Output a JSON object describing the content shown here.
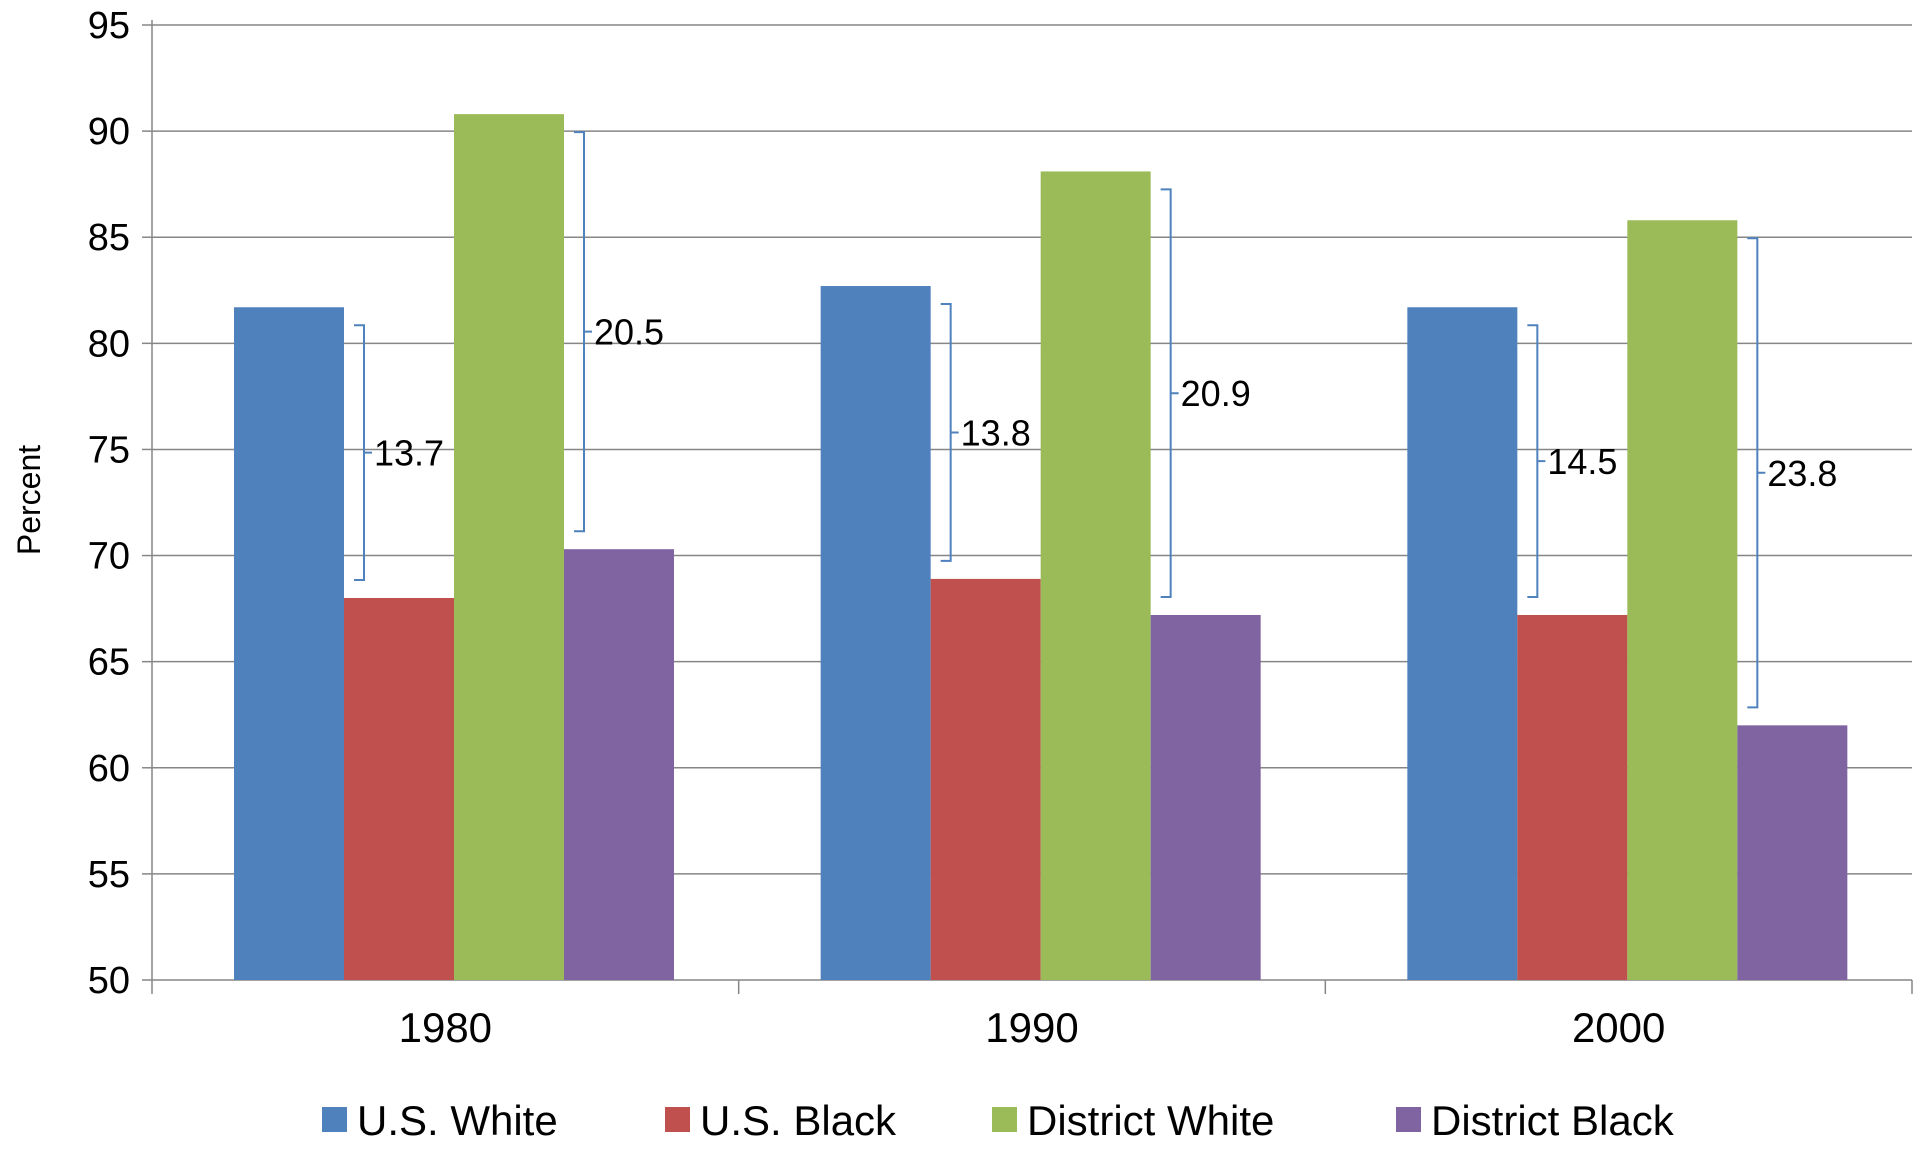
{
  "chart_data": {
    "type": "bar",
    "title": "",
    "xlabel": "",
    "ylabel": "Percent",
    "ylim": [
      50,
      95
    ],
    "yticks": [
      50,
      55,
      60,
      65,
      70,
      75,
      80,
      85,
      90,
      95
    ],
    "grid": true,
    "legend_position": "bottom",
    "categories": [
      "1980",
      "1990",
      "2000"
    ],
    "series": [
      {
        "name": "U.S. White",
        "color": "#4F81BD",
        "values": [
          81.7,
          82.7,
          81.7
        ]
      },
      {
        "name": "U.S. Black",
        "color": "#C0504D",
        "values": [
          68.0,
          68.9,
          67.2
        ]
      },
      {
        "name": "District White",
        "color": "#9BBB59",
        "values": [
          90.8,
          88.1,
          85.8
        ]
      },
      {
        "name": "District Black",
        "color": "#8064A2",
        "values": [
          70.3,
          67.2,
          62.0
        ]
      }
    ],
    "annotations": [
      {
        "category": "1980",
        "between": [
          "U.S. White",
          "U.S. Black"
        ],
        "label": "13.7"
      },
      {
        "category": "1980",
        "between": [
          "District White",
          "District Black"
        ],
        "label": "20.5"
      },
      {
        "category": "1990",
        "between": [
          "U.S. White",
          "U.S. Black"
        ],
        "label": "13.8"
      },
      {
        "category": "1990",
        "between": [
          "District White",
          "District Black"
        ],
        "label": "20.9"
      },
      {
        "category": "2000",
        "between": [
          "U.S. White",
          "U.S. Black"
        ],
        "label": "14.5"
      },
      {
        "category": "2000",
        "between": [
          "District White",
          "District Black"
        ],
        "label": "23.8"
      }
    ],
    "annotation_color": "#4F81BD"
  }
}
